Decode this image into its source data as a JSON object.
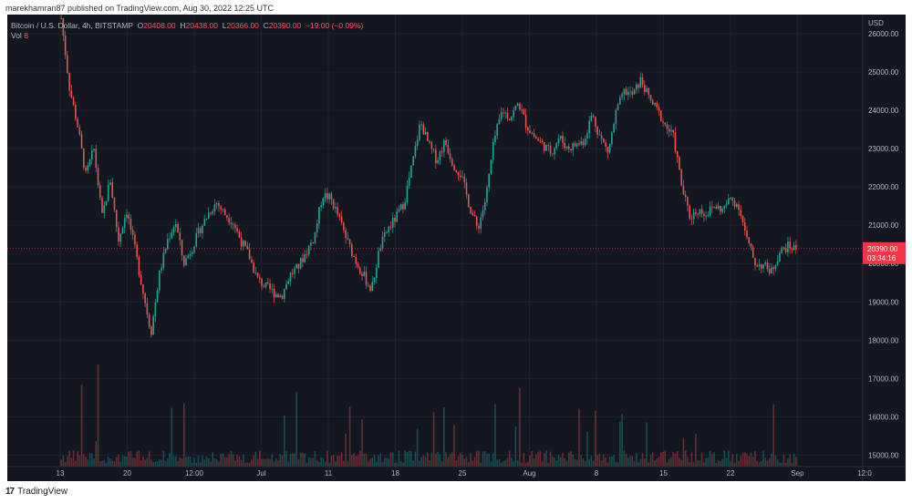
{
  "header": {
    "published_text": "marekhamran87 published on TradingView.com, Aug 30, 2022 12:25 UTC"
  },
  "legend": {
    "symbol": "Bitcoin / U.S. Dollar, 4h, BITSTAMP",
    "o_label": "O",
    "o": "20408.00",
    "h_label": "H",
    "h": "20438.00",
    "l_label": "L",
    "l": "20366.00",
    "c_label": "C",
    "c": "20390.00",
    "change": "−19.00 (−0.09%)",
    "vol_label": "Vol",
    "vol": "8"
  },
  "footer": {
    "logo": "17",
    "brand": "TradingView"
  },
  "colors": {
    "background": "#131722",
    "up": "#26a69a",
    "down": "#ef5350",
    "text": "#b2b5be",
    "price_tag": "#f23645"
  },
  "chart_data": {
    "type": "candlestick",
    "title": "Bitcoin / U.S. Dollar, 4h, BITSTAMP",
    "currency": "USD",
    "price_label": "20390.00",
    "countdown": "03:34:16",
    "ylim": [
      14700,
      26500
    ],
    "y_ticks": [
      "26000.00",
      "25000.00",
      "24000.00",
      "23000.00",
      "22000.00",
      "21000.00",
      "20000.00",
      "19000.00",
      "18000.00",
      "17000.00",
      "16000.00",
      "15000.00"
    ],
    "x_ticks": [
      "13",
      "20",
      "12:00",
      "Jul",
      "11",
      "18",
      "25",
      "Aug",
      "8",
      "15",
      "22",
      "Sep",
      "12:0"
    ],
    "price_path": [
      [
        0,
        26400
      ],
      [
        2,
        24600
      ],
      [
        4,
        23600
      ],
      [
        6,
        22300
      ],
      [
        8,
        23000
      ],
      [
        10,
        21200
      ],
      [
        12,
        22200
      ],
      [
        14,
        20600
      ],
      [
        16,
        21400
      ],
      [
        18,
        20400
      ],
      [
        20,
        19300
      ],
      [
        22,
        18200
      ],
      [
        24,
        19700
      ],
      [
        26,
        20600
      ],
      [
        28,
        21100
      ],
      [
        30,
        20000
      ],
      [
        32,
        20400
      ],
      [
        34,
        20900
      ],
      [
        36,
        21300
      ],
      [
        38,
        21600
      ],
      [
        40,
        21300
      ],
      [
        42,
        21100
      ],
      [
        44,
        20600
      ],
      [
        46,
        20200
      ],
      [
        48,
        19600
      ],
      [
        50,
        19400
      ],
      [
        52,
        19250
      ],
      [
        54,
        19150
      ],
      [
        56,
        19700
      ],
      [
        58,
        19900
      ],
      [
        60,
        20300
      ],
      [
        62,
        20700
      ],
      [
        64,
        21800
      ],
      [
        66,
        21700
      ],
      [
        68,
        21200
      ],
      [
        70,
        20600
      ],
      [
        72,
        20100
      ],
      [
        74,
        19700
      ],
      [
        76,
        19300
      ],
      [
        78,
        20400
      ],
      [
        80,
        20900
      ],
      [
        82,
        21200
      ],
      [
        84,
        21600
      ],
      [
        86,
        22600
      ],
      [
        88,
        23700
      ],
      [
        90,
        23100
      ],
      [
        92,
        22700
      ],
      [
        94,
        23200
      ],
      [
        96,
        22600
      ],
      [
        98,
        22300
      ],
      [
        100,
        21500
      ],
      [
        102,
        20900
      ],
      [
        104,
        21700
      ],
      [
        106,
        23200
      ],
      [
        108,
        24000
      ],
      [
        110,
        23800
      ],
      [
        112,
        24200
      ],
      [
        114,
        23600
      ],
      [
        116,
        23300
      ],
      [
        118,
        23100
      ],
      [
        120,
        22900
      ],
      [
        122,
        23300
      ],
      [
        124,
        23000
      ],
      [
        126,
        23100
      ],
      [
        128,
        23200
      ],
      [
        130,
        23900
      ],
      [
        132,
        23300
      ],
      [
        134,
        22900
      ],
      [
        136,
        24000
      ],
      [
        138,
        24500
      ],
      [
        140,
        24400
      ],
      [
        142,
        24800
      ],
      [
        144,
        24300
      ],
      [
        146,
        24000
      ],
      [
        148,
        23600
      ],
      [
        150,
        23300
      ],
      [
        152,
        22000
      ],
      [
        154,
        21200
      ],
      [
        156,
        21400
      ],
      [
        158,
        21300
      ],
      [
        160,
        21500
      ],
      [
        162,
        21400
      ],
      [
        164,
        21700
      ],
      [
        166,
        21500
      ],
      [
        168,
        20600
      ],
      [
        170,
        20000
      ],
      [
        172,
        19950
      ],
      [
        174,
        19800
      ],
      [
        176,
        20300
      ],
      [
        178,
        20450
      ],
      [
        180,
        20390
      ]
    ]
  }
}
